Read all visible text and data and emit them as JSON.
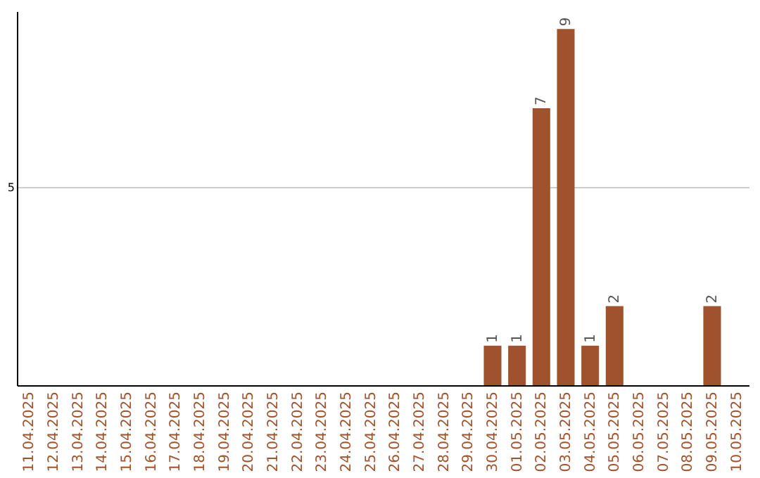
{
  "chart_data": {
    "type": "bar",
    "categories": [
      "11.04.2025",
      "12.04.2025",
      "13.04.2025",
      "14.04.2025",
      "15.04.2025",
      "16.04.2025",
      "17.04.2025",
      "18.04.2025",
      "19.04.2025",
      "20.04.2025",
      "21.04.2025",
      "22.04.2025",
      "23.04.2025",
      "24.04.2025",
      "25.04.2025",
      "26.04.2025",
      "27.04.2025",
      "28.04.2025",
      "29.04.2025",
      "30.04.2025",
      "01.05.2025",
      "02.05.2025",
      "03.05.2025",
      "04.05.2025",
      "05.05.2025",
      "06.05.2025",
      "07.05.2025",
      "08.05.2025",
      "09.05.2025",
      "10.05.2025"
    ],
    "values": [
      null,
      null,
      null,
      null,
      null,
      null,
      null,
      null,
      null,
      null,
      null,
      null,
      null,
      null,
      null,
      null,
      null,
      null,
      null,
      1,
      1,
      7,
      9,
      1,
      2,
      null,
      null,
      null,
      2,
      null
    ],
    "data_labels": true,
    "color": "#a0522d",
    "ylim": [
      0,
      9.45
    ],
    "yticks": [
      5
    ],
    "grid": "y"
  }
}
